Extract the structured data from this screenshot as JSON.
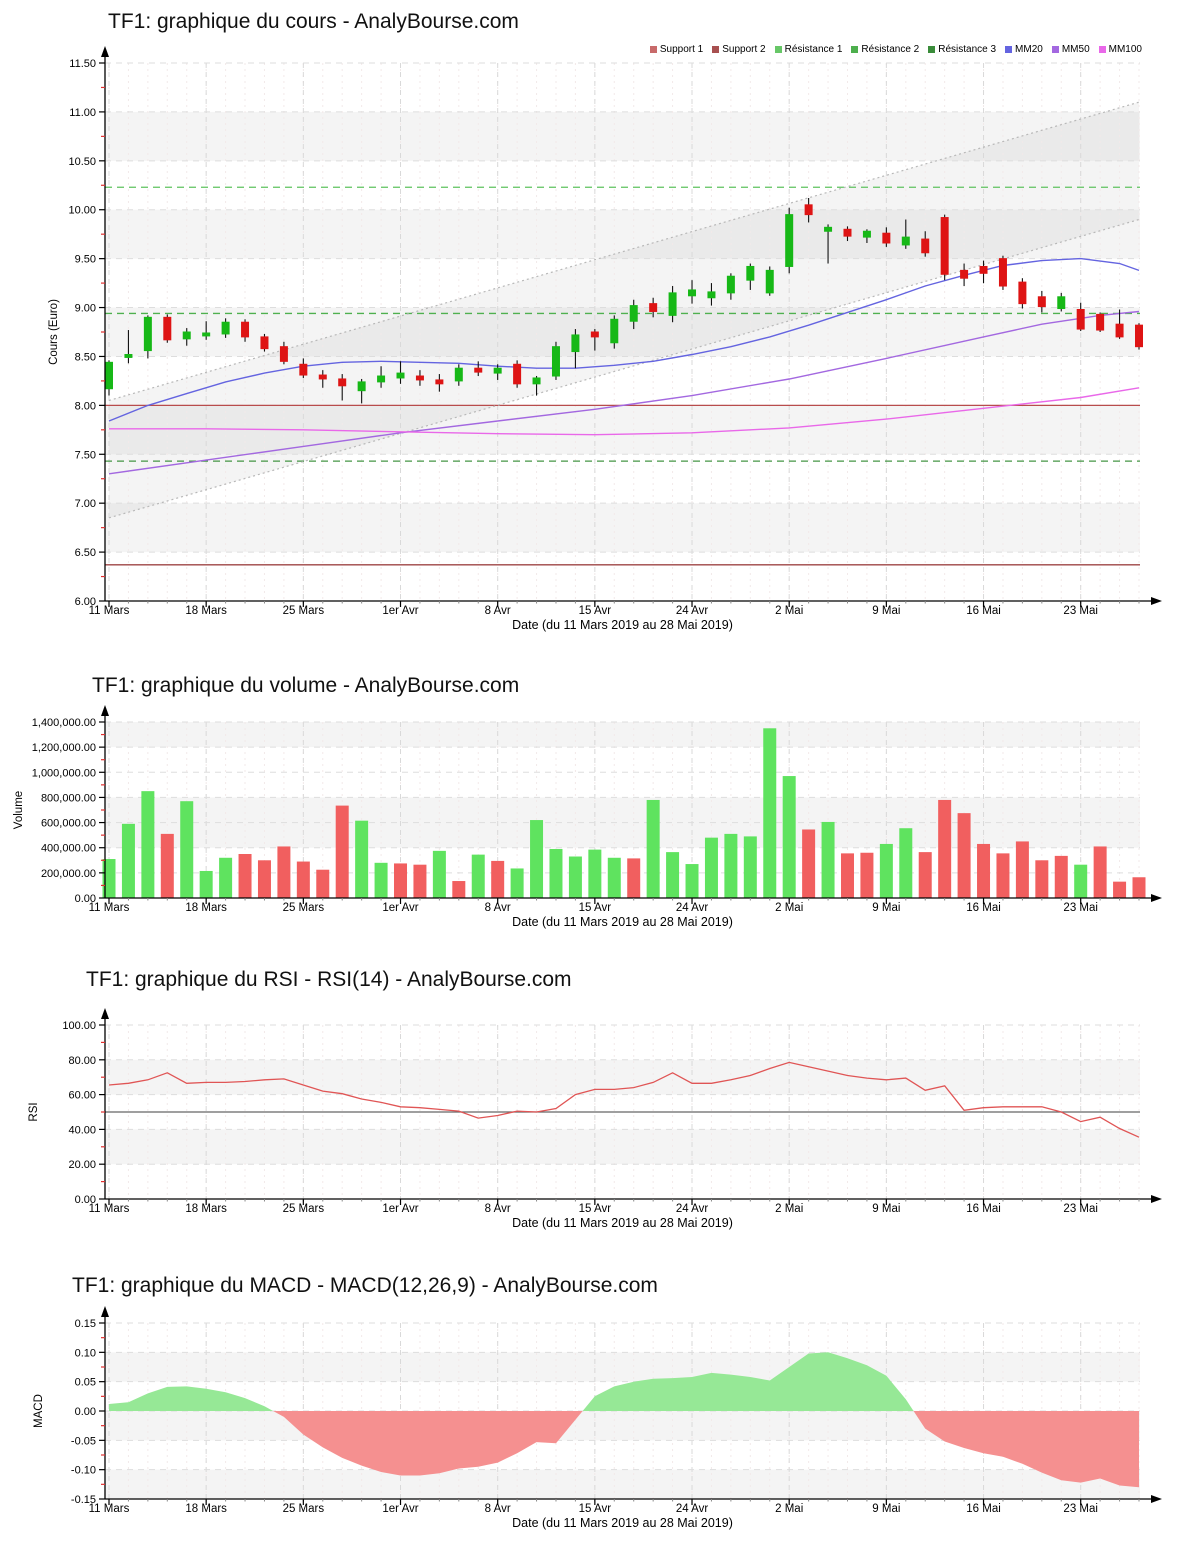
{
  "chart_data": [
    {
      "id": "price",
      "type": "candlestick",
      "title": "TF1: graphique du cours - AnalyBourse.com",
      "ylabel": "Cours (Euro)",
      "xlabel": "Date (du 11 Mars 2019 au 28 Mai 2019)",
      "ymin": 6.0,
      "ymax": 11.5,
      "ystep": 0.5,
      "yminor": 0.25,
      "tick_format": "fixed2",
      "n_days": 54,
      "x_ticks": [
        {
          "index": 0,
          "label": "11 Mars"
        },
        {
          "index": 5,
          "label": "18 Mars"
        },
        {
          "index": 10,
          "label": "25 Mars"
        },
        {
          "index": 15,
          "label": "1er Avr"
        },
        {
          "index": 20,
          "label": "8 Avr"
        },
        {
          "index": 25,
          "label": "15 Avr"
        },
        {
          "index": 30,
          "label": "24 Avr"
        },
        {
          "index": 35,
          "label": "2 Mai"
        },
        {
          "index": 40,
          "label": "9 Mai"
        },
        {
          "index": 45,
          "label": "16 Mai"
        },
        {
          "index": 50,
          "label": "23 Mai"
        }
      ],
      "bands": [
        [
          6.5,
          7.0
        ],
        [
          7.5,
          8.0
        ],
        [
          8.5,
          9.0
        ],
        [
          9.5,
          10.0
        ],
        [
          10.5,
          11.0
        ]
      ],
      "legend": [
        {
          "label": "Support 1",
          "color": "#C86A6A"
        },
        {
          "label": "Support 2",
          "color": "#A85050"
        },
        {
          "label": "Résistance 1",
          "color": "#67C767"
        },
        {
          "label": "Résistance 2",
          "color": "#4DAF4D"
        },
        {
          "label": "Résistance 3",
          "color": "#3A8C3A"
        },
        {
          "label": "MM20",
          "color": "#6464E0"
        },
        {
          "label": "MM50",
          "color": "#A368E0"
        },
        {
          "label": "MM100",
          "color": "#E968E9"
        }
      ],
      "hlines": [
        {
          "name": "support-1",
          "value": 8.0,
          "color": "#B84C4C",
          "style": "solid"
        },
        {
          "name": "support-2",
          "value": 6.37,
          "color": "#9E4444",
          "style": "solid"
        },
        {
          "name": "resistance-1",
          "value": 7.43,
          "color": "#459545",
          "style": "dashed"
        },
        {
          "name": "resistance-2",
          "value": 8.94,
          "color": "#4FB04F",
          "style": "dashed"
        },
        {
          "name": "resistance-3",
          "value": 10.23,
          "color": "#5FC25F",
          "style": "dashed"
        }
      ],
      "channel": {
        "lower": [
          [
            0,
            6.85
          ],
          [
            53,
            9.9
          ]
        ],
        "upper": [
          [
            0,
            8.05
          ],
          [
            53,
            11.1
          ]
        ],
        "line_color": "#B8B8B8",
        "fill_color": "#888888",
        "fill_opacity": 0.09
      },
      "moving_averages": [
        {
          "name": "MM20",
          "color": "#6464E0",
          "points": [
            [
              0,
              7.84
            ],
            [
              2,
              8.0
            ],
            [
              4,
              8.12
            ],
            [
              6,
              8.24
            ],
            [
              8,
              8.33
            ],
            [
              10,
              8.4
            ],
            [
              12,
              8.44
            ],
            [
              14,
              8.45
            ],
            [
              16,
              8.44
            ],
            [
              18,
              8.43
            ],
            [
              20,
              8.4
            ],
            [
              22,
              8.38
            ],
            [
              24,
              8.38
            ],
            [
              26,
              8.41
            ],
            [
              28,
              8.45
            ],
            [
              30,
              8.52
            ],
            [
              32,
              8.6
            ],
            [
              34,
              8.7
            ],
            [
              36,
              8.82
            ],
            [
              38,
              8.95
            ],
            [
              40,
              9.08
            ],
            [
              42,
              9.22
            ],
            [
              44,
              9.33
            ],
            [
              46,
              9.43
            ],
            [
              48,
              9.48
            ],
            [
              50,
              9.5
            ],
            [
              52,
              9.45
            ],
            [
              53,
              9.38
            ]
          ]
        },
        {
          "name": "MM50",
          "color": "#A368E0",
          "points": [
            [
              0,
              7.3
            ],
            [
              5,
              7.44
            ],
            [
              10,
              7.58
            ],
            [
              15,
              7.72
            ],
            [
              20,
              7.84
            ],
            [
              25,
              7.96
            ],
            [
              30,
              8.1
            ],
            [
              35,
              8.27
            ],
            [
              40,
              8.48
            ],
            [
              45,
              8.7
            ],
            [
              48,
              8.83
            ],
            [
              51,
              8.92
            ],
            [
              53,
              8.96
            ]
          ]
        },
        {
          "name": "MM100",
          "color": "#E968E9",
          "points": [
            [
              0,
              7.76
            ],
            [
              5,
              7.76
            ],
            [
              10,
              7.75
            ],
            [
              15,
              7.73
            ],
            [
              20,
              7.71
            ],
            [
              25,
              7.7
            ],
            [
              30,
              7.72
            ],
            [
              35,
              7.77
            ],
            [
              40,
              7.86
            ],
            [
              45,
              7.97
            ],
            [
              50,
              8.08
            ],
            [
              53,
              8.18
            ]
          ]
        }
      ],
      "colors": {
        "up": "#17B817",
        "down": "#DE1414",
        "wick": "#111111"
      },
      "candles": [
        [
          8.17,
          8.46,
          8.1,
          8.44
        ],
        [
          8.49,
          8.77,
          8.43,
          8.52
        ],
        [
          8.56,
          8.92,
          8.48,
          8.9
        ],
        [
          8.9,
          8.93,
          8.64,
          8.67
        ],
        [
          8.68,
          8.79,
          8.61,
          8.75
        ],
        [
          8.71,
          8.86,
          8.67,
          8.74
        ],
        [
          8.73,
          8.89,
          8.69,
          8.85
        ],
        [
          8.85,
          8.88,
          8.65,
          8.7
        ],
        [
          8.7,
          8.73,
          8.55,
          8.58
        ],
        [
          8.6,
          8.65,
          8.42,
          8.45
        ],
        [
          8.42,
          8.48,
          8.28,
          8.31
        ],
        [
          8.31,
          8.36,
          8.18,
          8.27
        ],
        [
          8.27,
          8.32,
          8.05,
          8.2
        ],
        [
          8.15,
          8.27,
          8.02,
          8.24
        ],
        [
          8.24,
          8.4,
          8.18,
          8.3
        ],
        [
          8.28,
          8.45,
          8.22,
          8.33
        ],
        [
          8.3,
          8.36,
          8.2,
          8.26
        ],
        [
          8.26,
          8.32,
          8.14,
          8.22
        ],
        [
          8.25,
          8.42,
          8.2,
          8.38
        ],
        [
          8.38,
          8.45,
          8.3,
          8.34
        ],
        [
          8.33,
          8.42,
          8.26,
          8.38
        ],
        [
          8.42,
          8.46,
          8.18,
          8.22
        ],
        [
          8.22,
          8.3,
          8.1,
          8.28
        ],
        [
          8.3,
          8.65,
          8.26,
          8.6
        ],
        [
          8.55,
          8.78,
          8.38,
          8.72
        ],
        [
          8.75,
          8.78,
          8.56,
          8.7
        ],
        [
          8.64,
          8.92,
          8.58,
          8.88
        ],
        [
          8.86,
          9.08,
          8.78,
          9.02
        ],
        [
          9.04,
          9.1,
          8.9,
          8.96
        ],
        [
          8.92,
          9.22,
          8.85,
          9.15
        ],
        [
          9.12,
          9.28,
          9.04,
          9.18
        ],
        [
          9.1,
          9.25,
          9.02,
          9.16
        ],
        [
          9.15,
          9.35,
          9.08,
          9.32
        ],
        [
          9.28,
          9.45,
          9.18,
          9.42
        ],
        [
          9.15,
          9.42,
          9.12,
          9.38
        ],
        [
          9.42,
          10.02,
          9.35,
          9.95
        ],
        [
          10.05,
          10.12,
          9.87,
          9.95
        ],
        [
          9.78,
          9.85,
          9.45,
          9.82
        ],
        [
          9.8,
          9.83,
          9.68,
          9.73
        ],
        [
          9.72,
          9.8,
          9.66,
          9.78
        ],
        [
          9.76,
          9.82,
          9.62,
          9.66
        ],
        [
          9.64,
          9.9,
          9.6,
          9.72
        ],
        [
          9.7,
          9.78,
          9.52,
          9.56
        ],
        [
          9.92,
          9.95,
          9.28,
          9.34
        ],
        [
          9.38,
          9.45,
          9.22,
          9.3
        ],
        [
          9.42,
          9.48,
          9.25,
          9.35
        ],
        [
          9.5,
          9.53,
          9.18,
          9.22
        ],
        [
          9.26,
          9.3,
          8.99,
          9.04
        ],
        [
          9.11,
          9.17,
          8.95,
          9.01
        ],
        [
          8.99,
          9.15,
          8.96,
          9.11
        ],
        [
          8.98,
          9.05,
          8.76,
          8.78
        ],
        [
          8.93,
          8.95,
          8.75,
          8.77
        ],
        [
          8.83,
          8.98,
          8.68,
          8.7
        ],
        [
          8.82,
          8.84,
          8.57,
          8.6
        ]
      ]
    },
    {
      "id": "volume",
      "type": "bar",
      "title": "TF1: graphique du volume - AnalyBourse.com",
      "ylabel": "Volume",
      "xlabel": "Date (du 11 Mars 2019 au 28 Mai 2019)",
      "ymin": 0,
      "ymax": 1400000,
      "ystep": 200000,
      "yminor": 100000,
      "tick_format": "thousands",
      "n_days": 54,
      "x_ticks": [
        {
          "index": 0,
          "label": "11 Mars"
        },
        {
          "index": 5,
          "label": "18 Mars"
        },
        {
          "index": 10,
          "label": "25 Mars"
        },
        {
          "index": 15,
          "label": "1er Avr"
        },
        {
          "index": 20,
          "label": "8 Avr"
        },
        {
          "index": 25,
          "label": "15 Avr"
        },
        {
          "index": 30,
          "label": "24 Avr"
        },
        {
          "index": 35,
          "label": "2 Mai"
        },
        {
          "index": 40,
          "label": "9 Mai"
        },
        {
          "index": 45,
          "label": "16 Mai"
        },
        {
          "index": 50,
          "label": "23 Mai"
        }
      ],
      "bands": [
        [
          400000,
          800000
        ],
        [
          1200000,
          1400000
        ]
      ],
      "colors": {
        "up": "#5FE35F",
        "down": "#F15F5F"
      },
      "values": [
        310000,
        590000,
        850000,
        510000,
        770000,
        215000,
        320000,
        350000,
        300000,
        410000,
        290000,
        225000,
        735000,
        615000,
        280000,
        275000,
        265000,
        375000,
        135000,
        345000,
        295000,
        235000,
        620000,
        390000,
        330000,
        385000,
        320000,
        315000,
        780000,
        365000,
        270000,
        480000,
        510000,
        490000,
        1350000,
        970000,
        545000,
        605000,
        355000,
        360000,
        430000,
        555000,
        365000,
        780000,
        675000,
        430000,
        355000,
        450000,
        300000,
        335000,
        265000,
        410000,
        130000,
        165000
      ],
      "dir": [
        "u",
        "u",
        "u",
        "d",
        "u",
        "u",
        "u",
        "d",
        "d",
        "d",
        "d",
        "d",
        "d",
        "u",
        "u",
        "d",
        "d",
        "u",
        "d",
        "u",
        "d",
        "u",
        "u",
        "u",
        "u",
        "u",
        "u",
        "d",
        "u",
        "u",
        "u",
        "u",
        "u",
        "u",
        "u",
        "u",
        "d",
        "u",
        "d",
        "d",
        "u",
        "u",
        "d",
        "d",
        "d",
        "d",
        "d",
        "d",
        "d",
        "d",
        "u",
        "d",
        "d",
        "d"
      ]
    },
    {
      "id": "rsi",
      "type": "line",
      "title": "TF1: graphique du RSI - RSI(14) - AnalyBourse.com",
      "ylabel": "RSI",
      "xlabel": "Date (du 11 Mars 2019 au 28 Mai 2019)",
      "ymin": 0,
      "ymax": 100,
      "ystep": 20,
      "yminor": 10,
      "tick_format": "fixed2",
      "n_days": 54,
      "x_ticks": [
        {
          "index": 0,
          "label": "11 Mars"
        },
        {
          "index": 5,
          "label": "18 Mars"
        },
        {
          "index": 10,
          "label": "25 Mars"
        },
        {
          "index": 15,
          "label": "1er Avr"
        },
        {
          "index": 20,
          "label": "8 Avr"
        },
        {
          "index": 25,
          "label": "15 Avr"
        },
        {
          "index": 30,
          "label": "24 Avr"
        },
        {
          "index": 35,
          "label": "2 Mai"
        },
        {
          "index": 40,
          "label": "9 Mai"
        },
        {
          "index": 45,
          "label": "16 Mai"
        },
        {
          "index": 50,
          "label": "23 Mai"
        }
      ],
      "bands": [
        [
          20,
          40
        ],
        [
          60,
          80
        ]
      ],
      "line_color": "#E05555",
      "hlines": [
        {
          "name": "rsi-midline-50",
          "value": 50,
          "color": "#666666",
          "style": "solid"
        }
      ],
      "values": [
        65.5,
        66.5,
        68.5,
        72.5,
        66.5,
        67,
        67,
        67.5,
        68.5,
        69,
        65.5,
        62,
        60.5,
        57.5,
        55.5,
        53,
        52.5,
        51.5,
        50.5,
        46.5,
        48,
        50.5,
        50,
        52,
        60,
        63,
        63,
        64,
        67,
        72.5,
        66.5,
        66.5,
        68.5,
        71,
        75,
        78.5,
        76,
        73.5,
        71,
        69.5,
        68.5,
        69.5,
        62.5,
        65,
        51,
        52.5,
        53,
        53,
        53,
        50,
        44.5,
        47,
        40.5,
        35.5
      ]
    },
    {
      "id": "macd",
      "type": "area",
      "title": "TF1: graphique du MACD - MACD(12,26,9) - AnalyBourse.com",
      "ylabel": "MACD",
      "xlabel": "Date (du 11 Mars 2019 au 28 Mai 2019)",
      "ymin": -0.15,
      "ymax": 0.15,
      "ystep": 0.05,
      "yminor": 0.025,
      "tick_format": "fixed2",
      "n_days": 54,
      "x_ticks": [
        {
          "index": 0,
          "label": "11 Mars"
        },
        {
          "index": 5,
          "label": "18 Mars"
        },
        {
          "index": 10,
          "label": "25 Mars"
        },
        {
          "index": 15,
          "label": "1er Avr"
        },
        {
          "index": 20,
          "label": "8 Avr"
        },
        {
          "index": 25,
          "label": "15 Avr"
        },
        {
          "index": 30,
          "label": "24 Avr"
        },
        {
          "index": 35,
          "label": "2 Mai"
        },
        {
          "index": 40,
          "label": "9 Mai"
        },
        {
          "index": 45,
          "label": "16 Mai"
        },
        {
          "index": 50,
          "label": "23 Mai"
        }
      ],
      "bands": [
        [
          -0.15,
          -0.1
        ],
        [
          -0.05,
          0.0
        ],
        [
          0.05,
          0.1
        ]
      ],
      "colors": {
        "up": "#96E896",
        "down": "#F59090"
      },
      "values": [
        0.012,
        0.015,
        0.03,
        0.041,
        0.042,
        0.038,
        0.032,
        0.022,
        0.008,
        -0.01,
        -0.04,
        -0.062,
        -0.08,
        -0.093,
        -0.104,
        -0.11,
        -0.11,
        -0.106,
        -0.098,
        -0.095,
        -0.088,
        -0.072,
        -0.053,
        -0.055,
        -0.015,
        0.025,
        0.042,
        0.05,
        0.055,
        0.056,
        0.058,
        0.065,
        0.062,
        0.058,
        0.052,
        0.075,
        0.098,
        0.1,
        0.09,
        0.078,
        0.06,
        0.02,
        -0.03,
        -0.052,
        -0.063,
        -0.072,
        -0.078,
        -0.09,
        -0.105,
        -0.118,
        -0.122,
        -0.115,
        -0.127,
        -0.13
      ]
    }
  ]
}
